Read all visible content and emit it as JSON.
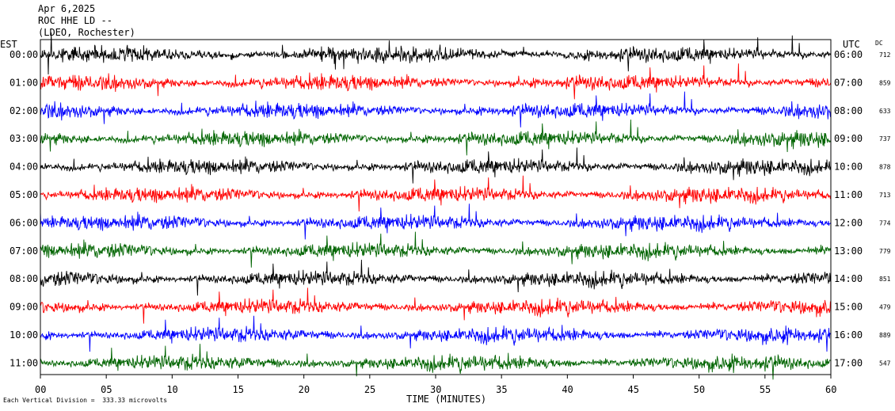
{
  "header": {
    "date": "Apr 6,2025",
    "station": "ROC HHE LD --",
    "network": "(LDEO, Rochester)"
  },
  "left_axis_title": "EST",
  "right_axis_title": "UTC",
  "dc_title": "DC",
  "footer_note": "Each Vertical Division =  333.33 microvolts",
  "xlabel": "TIME (MINUTES)",
  "colors": {
    "trace_cycle": [
      "#000000",
      "#ff0000",
      "#0000ff",
      "#006400"
    ],
    "frame": "#000000",
    "grid": "#000000"
  },
  "chart_data": {
    "type": "line",
    "title": "Apr 6,2025 ROC HHE LD -- (LDEO, Rochester)",
    "xlabel": "TIME (MINUTES)",
    "xlim": [
      0,
      60
    ],
    "x_ticks": [
      "00",
      "05",
      "10",
      "15",
      "20",
      "25",
      "30",
      "35",
      "40",
      "45",
      "50",
      "55",
      "60"
    ],
    "series": [
      {
        "est": "00:00",
        "utc": "06:00",
        "dc": "712"
      },
      {
        "est": "01:00",
        "utc": "07:00",
        "dc": "859"
      },
      {
        "est": "02:00",
        "utc": "08:00",
        "dc": "633"
      },
      {
        "est": "03:00",
        "utc": "09:00",
        "dc": "737"
      },
      {
        "est": "04:00",
        "utc": "10:00",
        "dc": "878"
      },
      {
        "est": "05:00",
        "utc": "11:00",
        "dc": "713"
      },
      {
        "est": "06:00",
        "utc": "12:00",
        "dc": "774"
      },
      {
        "est": "07:00",
        "utc": "13:00",
        "dc": "779"
      },
      {
        "est": "08:00",
        "utc": "14:00",
        "dc": "851"
      },
      {
        "est": "09:00",
        "utc": "15:00",
        "dc": "479"
      },
      {
        "est": "10:00",
        "utc": "16:00",
        "dc": "889"
      },
      {
        "est": "11:00",
        "utc": "17:00",
        "dc": "547"
      }
    ],
    "vertical_division_uV": 333.33,
    "grid": true
  }
}
